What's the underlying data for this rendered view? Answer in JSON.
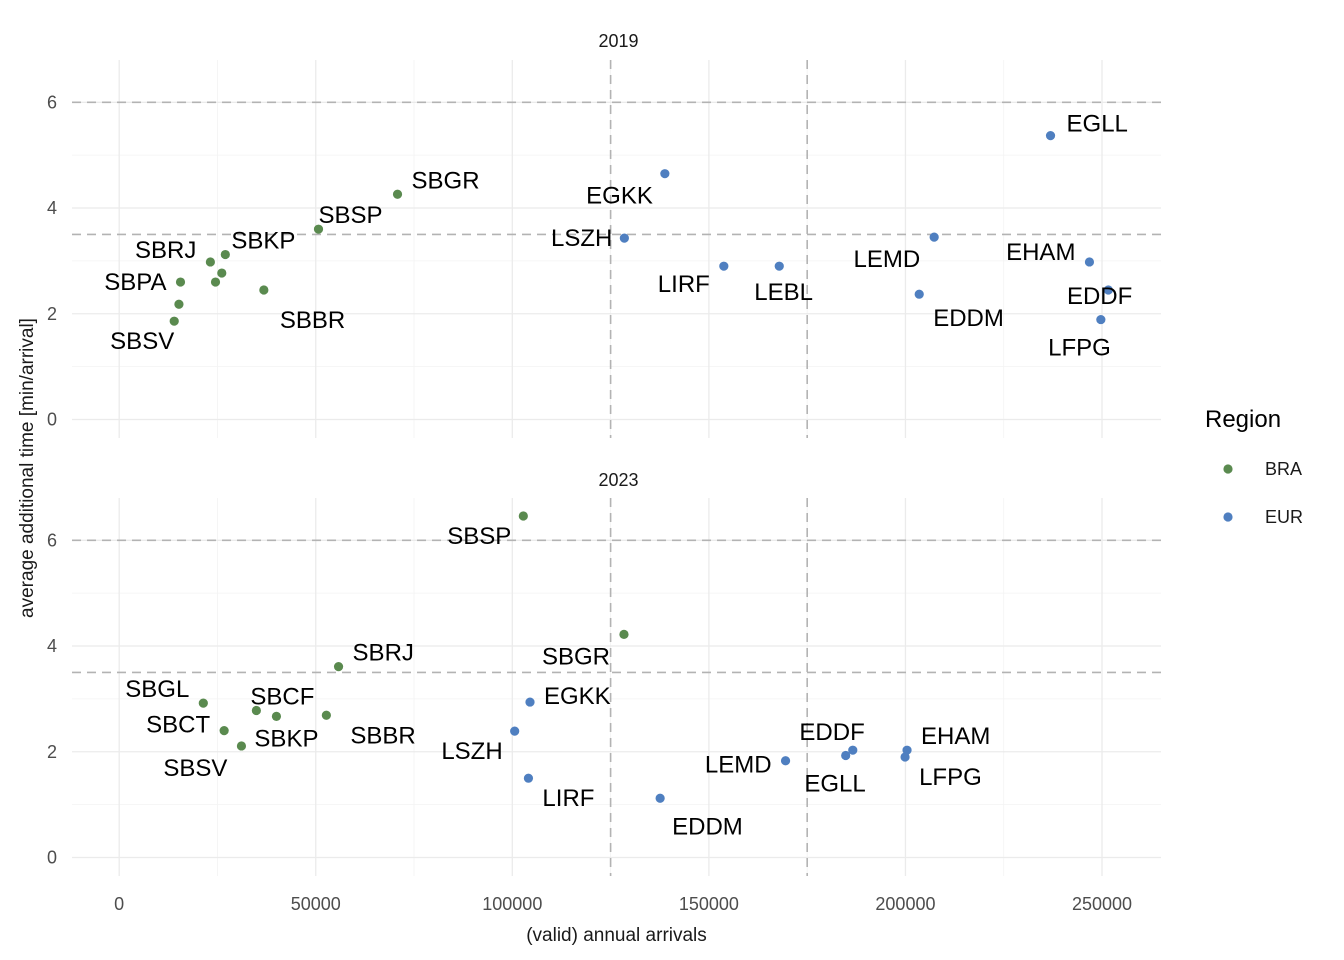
{
  "chart_data": {
    "type": "scatter",
    "xlabel": "(valid) annual arrivals",
    "ylabel": "average additional time [min/arrival]",
    "xlim": [
      -12000,
      265000
    ],
    "ylim": [
      -0.35,
      6.8
    ],
    "x_ticks": [
      0,
      50000,
      100000,
      150000,
      200000,
      250000
    ],
    "x_tick_labels": [
      "0",
      "50000",
      "100000",
      "150000",
      "200000",
      "250000"
    ],
    "y_ticks": [
      0,
      2,
      4,
      6
    ],
    "y_tick_labels": [
      "0",
      "2",
      "4",
      "6"
    ],
    "reference_lines": {
      "horizontal": [
        3.5,
        6
      ],
      "vertical": [
        125000,
        175000
      ]
    },
    "grid": true,
    "legend": {
      "title": "Region",
      "position": "right",
      "entries": [
        {
          "name": "BRA",
          "color": "#5a8a4f"
        },
        {
          "name": "EUR",
          "color": "#4f7fc0"
        }
      ]
    },
    "facets": [
      {
        "title": "2019",
        "points": [
          {
            "x": 14000,
            "y": 1.86,
            "region": "BRA",
            "label": "SBSV"
          },
          {
            "x": 15200,
            "y": 2.18,
            "region": "BRA",
            "label": ""
          },
          {
            "x": 15600,
            "y": 2.6,
            "region": "BRA",
            "label": "SBPA"
          },
          {
            "x": 23200,
            "y": 2.98,
            "region": "BRA",
            "label": "SBRJ"
          },
          {
            "x": 24500,
            "y": 2.6,
            "region": "BRA",
            "label": ""
          },
          {
            "x": 26100,
            "y": 2.77,
            "region": "BRA",
            "label": ""
          },
          {
            "x": 27000,
            "y": 3.12,
            "region": "BRA",
            "label": "SBKP"
          },
          {
            "x": 36800,
            "y": 2.45,
            "region": "BRA",
            "label": "SBBR"
          },
          {
            "x": 50700,
            "y": 3.6,
            "region": "BRA",
            "label": "SBSP"
          },
          {
            "x": 70800,
            "y": 4.26,
            "region": "BRA",
            "label": "SBGR"
          },
          {
            "x": 128500,
            "y": 3.43,
            "region": "EUR",
            "label": "LSZH"
          },
          {
            "x": 138800,
            "y": 4.65,
            "region": "EUR",
            "label": "EGKK"
          },
          {
            "x": 153800,
            "y": 2.9,
            "region": "EUR",
            "label": "LIRF"
          },
          {
            "x": 167900,
            "y": 2.9,
            "region": "EUR",
            "label": "LEBL"
          },
          {
            "x": 203500,
            "y": 2.37,
            "region": "EUR",
            "label": "EDDM"
          },
          {
            "x": 207300,
            "y": 3.45,
            "region": "EUR",
            "label": "LEMD"
          },
          {
            "x": 236900,
            "y": 5.37,
            "region": "EUR",
            "label": "EGLL"
          },
          {
            "x": 246800,
            "y": 2.98,
            "region": "EUR",
            "label": "EHAM"
          },
          {
            "x": 249700,
            "y": 1.89,
            "region": "EUR",
            "label": "LFPG"
          },
          {
            "x": 251600,
            "y": 2.45,
            "region": "EUR",
            "label": "EDDF"
          }
        ]
      },
      {
        "title": "2023",
        "points": [
          {
            "x": 21400,
            "y": 2.92,
            "region": "BRA",
            "label": "SBGL"
          },
          {
            "x": 26700,
            "y": 2.4,
            "region": "BRA",
            "label": "SBCT"
          },
          {
            "x": 31100,
            "y": 2.11,
            "region": "BRA",
            "label": "SBSV"
          },
          {
            "x": 34900,
            "y": 2.78,
            "region": "BRA",
            "label": "SBCF"
          },
          {
            "x": 40000,
            "y": 2.67,
            "region": "BRA",
            "label": "SBKP"
          },
          {
            "x": 52700,
            "y": 2.69,
            "region": "BRA",
            "label": "SBBR"
          },
          {
            "x": 55800,
            "y": 3.61,
            "region": "BRA",
            "label": "SBRJ"
          },
          {
            "x": 102800,
            "y": 6.46,
            "region": "BRA",
            "label": "SBSP"
          },
          {
            "x": 128400,
            "y": 4.22,
            "region": "BRA",
            "label": "SBGR"
          },
          {
            "x": 100600,
            "y": 2.39,
            "region": "EUR",
            "label": "LSZH"
          },
          {
            "x": 104500,
            "y": 2.94,
            "region": "EUR",
            "label": "EGKK"
          },
          {
            "x": 104100,
            "y": 1.5,
            "region": "EUR",
            "label": "LIRF"
          },
          {
            "x": 137600,
            "y": 1.12,
            "region": "EUR",
            "label": "EDDM"
          },
          {
            "x": 169500,
            "y": 1.83,
            "region": "EUR",
            "label": "LEMD"
          },
          {
            "x": 184800,
            "y": 1.93,
            "region": "EUR",
            "label": "EGLL"
          },
          {
            "x": 186600,
            "y": 2.03,
            "region": "EUR",
            "label": "EDDF"
          },
          {
            "x": 199900,
            "y": 1.9,
            "region": "EUR",
            "label": "LFPG"
          },
          {
            "x": 200400,
            "y": 2.03,
            "region": "EUR",
            "label": "EHAM"
          }
        ]
      }
    ]
  }
}
